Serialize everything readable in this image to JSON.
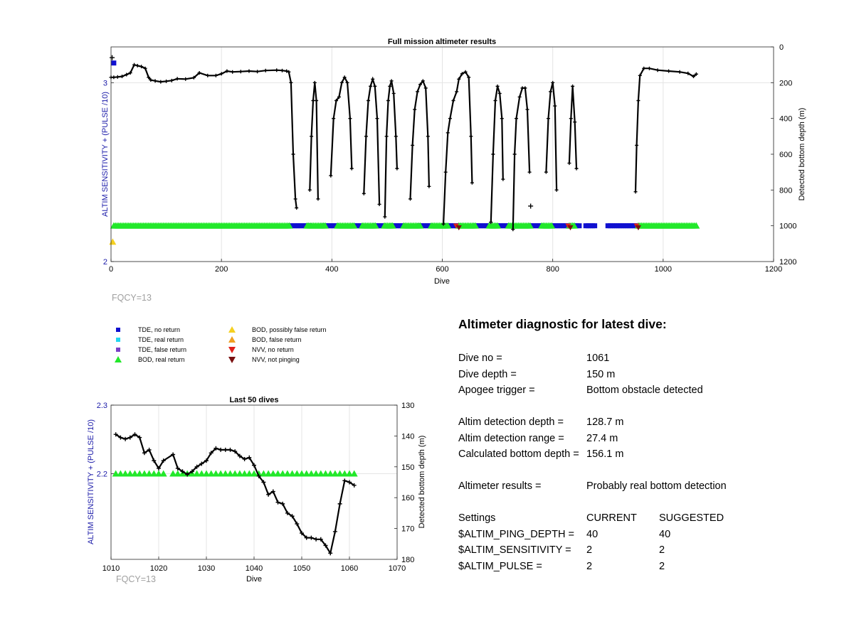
{
  "chart_data": [
    {
      "type": "scatter",
      "title": "Full mission altimeter results",
      "xlabel": "Dive",
      "ylabel": "ALTIM SENSITIVITY + (PULSE /10)",
      "y2label": "Detected bottom depth (m)",
      "xlim": [
        0,
        1200
      ],
      "ylim": [
        2,
        3.2
      ],
      "y2lim": [
        1200,
        0
      ],
      "xticks": [
        "0",
        "200",
        "400",
        "600",
        "800",
        "1000",
        "1200"
      ],
      "yticks": [
        "2",
        "3"
      ],
      "y2ticks": [
        "0",
        "200",
        "400",
        "600",
        "800",
        "1000",
        "1200"
      ],
      "grid": true,
      "annotation": "FQCY=13",
      "sensitivity_series": {
        "green_ranges": [
          [
            5,
            325
          ],
          [
            355,
            390
          ],
          [
            410,
            440
          ],
          [
            455,
            480
          ],
          [
            495,
            510
          ],
          [
            530,
            560
          ],
          [
            580,
            610
          ],
          [
            630,
            660
          ],
          [
            685,
            700
          ],
          [
            720,
            760
          ],
          [
            780,
            800
          ],
          [
            830,
            840
          ],
          [
            955,
            1060
          ]
        ],
        "blue_ranges": [
          [
            325,
            340
          ],
          [
            340,
            360
          ],
          [
            385,
            410
          ],
          [
            440,
            455
          ],
          [
            478,
            495
          ],
          [
            508,
            530
          ],
          [
            558,
            580
          ],
          [
            606,
            632
          ],
          [
            660,
            685
          ],
          [
            700,
            722
          ],
          [
            760,
            782
          ],
          [
            800,
            830
          ],
          [
            840,
            850
          ],
          [
            860,
            876
          ],
          [
            900,
            955
          ]
        ],
        "early_points": [
          {
            "x": 5,
            "y": 3.11,
            "m": "tde_none"
          },
          {
            "x": 3,
            "y": 2.11,
            "m": "bod_possibly_false"
          }
        ],
        "nvv_points": [
          {
            "x": 625,
            "y": 2.2,
            "m": "nvv_none"
          },
          {
            "x": 630,
            "y": 2.19,
            "m": "nvv_not"
          },
          {
            "x": 828,
            "y": 2.2,
            "m": "nvv_none"
          },
          {
            "x": 832,
            "y": 2.19,
            "m": "nvv_not"
          },
          {
            "x": 952,
            "y": 2.2,
            "m": "nvv_none"
          },
          {
            "x": 955,
            "y": 2.19,
            "m": "nvv_not"
          }
        ],
        "sensitivity_level": 2.2
      },
      "bottom_depth": {
        "segments": [
          [
            [
              0,
              170
            ],
            [
              5,
              170
            ],
            [
              12,
              168
            ],
            [
              20,
              165
            ],
            [
              28,
              155
            ],
            [
              35,
              145
            ],
            [
              42,
              100
            ],
            [
              48,
              105
            ],
            [
              55,
              110
            ],
            [
              62,
              120
            ],
            [
              68,
              170
            ],
            [
              72,
              185
            ],
            [
              80,
              190
            ],
            [
              90,
              195
            ],
            [
              100,
              192
            ],
            [
              110,
              188
            ],
            [
              120,
              178
            ],
            [
              135,
              180
            ],
            [
              150,
              172
            ],
            [
              160,
              145
            ],
            [
              175,
              160
            ],
            [
              190,
              160
            ],
            [
              200,
              150
            ],
            [
              210,
              135
            ],
            [
              220,
              140
            ],
            [
              235,
              138
            ],
            [
              250,
              135
            ],
            [
              265,
              138
            ],
            [
              280,
              132
            ],
            [
              300,
              130
            ],
            [
              310,
              132
            ],
            [
              318,
              135
            ],
            [
              322,
              140
            ],
            [
              326,
              200
            ],
            [
              330,
              600
            ],
            [
              334,
              850
            ],
            [
              336,
              900
            ]
          ],
          [
            [
              360,
              800
            ],
            [
              363,
              500
            ],
            [
              366,
              300
            ],
            [
              369,
              200
            ],
            [
              372,
              300
            ],
            [
              375,
              850
            ]
          ],
          [
            [
              398,
              720
            ],
            [
              403,
              400
            ],
            [
              408,
              300
            ],
            [
              413,
              280
            ],
            [
              418,
              200
            ],
            [
              423,
              170
            ],
            [
              428,
              200
            ],
            [
              433,
              400
            ],
            [
              436,
              680
            ]
          ],
          [
            [
              458,
              820
            ],
            [
              462,
              500
            ],
            [
              466,
              300
            ],
            [
              470,
              220
            ],
            [
              474,
              180
            ],
            [
              478,
              220
            ],
            [
              482,
              400
            ],
            [
              486,
              880
            ]
          ],
          [
            [
              496,
              950
            ],
            [
              499,
              500
            ],
            [
              502,
              300
            ],
            [
              505,
              220
            ],
            [
              508,
              190
            ],
            [
              512,
              260
            ],
            [
              516,
              500
            ],
            [
              518,
              680
            ]
          ],
          [
            [
              542,
              850
            ],
            [
              546,
              550
            ],
            [
              550,
              350
            ],
            [
              555,
              250
            ],
            [
              560,
              210
            ],
            [
              565,
              190
            ],
            [
              570,
              230
            ],
            [
              574,
              500
            ],
            [
              576,
              780
            ]
          ],
          [
            [
              602,
              990
            ],
            [
              606,
              700
            ],
            [
              610,
              480
            ],
            [
              614,
              400
            ],
            [
              620,
              300
            ],
            [
              626,
              250
            ],
            [
              630,
              180
            ],
            [
              636,
              150
            ],
            [
              642,
              140
            ],
            [
              648,
              170
            ],
            [
              652,
              500
            ],
            [
              654,
              760
            ]
          ],
          [
            [
              688,
              980
            ],
            [
              692,
              600
            ],
            [
              696,
              300
            ],
            [
              700,
              220
            ],
            [
              704,
              260
            ],
            [
              708,
              400
            ],
            [
              710,
              740
            ]
          ],
          [
            [
              728,
              1020
            ],
            [
              731,
              600
            ],
            [
              734,
              400
            ],
            [
              740,
              280
            ],
            [
              745,
              230
            ],
            [
              750,
              230
            ],
            [
              754,
              350
            ],
            [
              758,
              700
            ]
          ],
          [
            [
              788,
              700
            ],
            [
              792,
              400
            ],
            [
              796,
              250
            ],
            [
              800,
              200
            ],
            [
              804,
              330
            ],
            [
              807,
              800
            ]
          ],
          [
            [
              830,
              650
            ],
            [
              833,
              400
            ],
            [
              836,
              220
            ],
            [
              840,
              420
            ],
            [
              843,
              680
            ]
          ],
          [
            [
              950,
              810
            ],
            [
              952,
              550
            ],
            [
              955,
              300
            ],
            [
              958,
              160
            ],
            [
              965,
              120
            ],
            [
              975,
              120
            ],
            [
              990,
              130
            ],
            [
              1010,
              135
            ],
            [
              1030,
              140
            ],
            [
              1045,
              148
            ],
            [
              1055,
              165
            ],
            [
              1060,
              152
            ]
          ]
        ],
        "outliers": [
          {
            "x": 2,
            "y": 60
          },
          {
            "x": 760,
            "y": 890
          }
        ]
      }
    },
    {
      "type": "scatter",
      "title": "Last 50 dives",
      "xlabel": "Dive",
      "ylabel": "ALTIM SENSITIVITY + (PULSE /10)",
      "y2label": "Detected bottom depth (m)",
      "xlim": [
        1010,
        1070
      ],
      "ylim": [
        2.075,
        2.3
      ],
      "y2lim": [
        180,
        130
      ],
      "xticks": [
        "1010",
        "1020",
        "1030",
        "1040",
        "1050",
        "1060",
        "1070"
      ],
      "yticks": [
        "2.2",
        "2.3"
      ],
      "y2ticks": [
        "130",
        "140",
        "150",
        "160",
        "170",
        "180"
      ],
      "grid": true,
      "annotation": "FQCY=13",
      "sensitivity_x": [
        1011,
        1012,
        1013,
        1014,
        1015,
        1016,
        1017,
        1018,
        1019,
        1020,
        1021,
        1023,
        1024,
        1025,
        1026,
        1027,
        1028,
        1029,
        1030,
        1031,
        1032,
        1033,
        1034,
        1035,
        1036,
        1037,
        1038,
        1039,
        1040,
        1041,
        1042,
        1043,
        1044,
        1045,
        1046,
        1047,
        1048,
        1049,
        1050,
        1051,
        1052,
        1053,
        1054,
        1055,
        1056,
        1057,
        1058,
        1059,
        1060,
        1061
      ],
      "sensitivity_level": 2.2,
      "bottom_depth": [
        [
          1011,
          139.5
        ],
        [
          1012,
          140.5
        ],
        [
          1013,
          141
        ],
        [
          1014,
          140.5
        ],
        [
          1015,
          139.5
        ],
        [
          1016,
          140.5
        ],
        [
          1017,
          145.5
        ],
        [
          1018,
          144.5
        ],
        [
          1019,
          148
        ],
        [
          1020,
          150.5
        ],
        [
          1021,
          148
        ],
        [
          1023,
          146
        ],
        [
          1024,
          150.5
        ],
        [
          1025,
          151.5
        ],
        [
          1026,
          152.5
        ],
        [
          1027,
          151.5
        ],
        [
          1028,
          150
        ],
        [
          1029,
          149
        ],
        [
          1030,
          148
        ],
        [
          1031,
          145.5
        ],
        [
          1032,
          144
        ],
        [
          1033,
          144.5
        ],
        [
          1034,
          144.5
        ],
        [
          1035,
          144.5
        ],
        [
          1036,
          145
        ],
        [
          1037,
          146.5
        ],
        [
          1038,
          147.5
        ],
        [
          1039,
          147
        ],
        [
          1040,
          149.5
        ],
        [
          1041,
          153
        ],
        [
          1042,
          155
        ],
        [
          1043,
          159
        ],
        [
          1044,
          158
        ],
        [
          1045,
          161.5
        ],
        [
          1046,
          162
        ],
        [
          1047,
          165
        ],
        [
          1048,
          166
        ],
        [
          1049,
          168.5
        ],
        [
          1050,
          171.5
        ],
        [
          1051,
          173
        ],
        [
          1052,
          173
        ],
        [
          1053,
          173.5
        ],
        [
          1054,
          173.5
        ],
        [
          1055,
          175.5
        ],
        [
          1056,
          178
        ],
        [
          1057,
          171
        ],
        [
          1058,
          162
        ],
        [
          1059,
          154.5
        ],
        [
          1060,
          155
        ],
        [
          1061,
          156
        ]
      ]
    }
  ],
  "legend": {
    "items": [
      {
        "label": "TDE, no return",
        "marker": "square",
        "color": "#1010d0"
      },
      {
        "label": "TDE, real return",
        "marker": "square",
        "color": "#22d6f0"
      },
      {
        "label": "TDE, false return",
        "marker": "square",
        "color": "#7a3fc8"
      },
      {
        "label": "BOD, real return",
        "marker": "triangle-up",
        "color": "#22e82a"
      },
      {
        "label": "BOD, possibly false return",
        "marker": "triangle-up",
        "color": "#f5d020"
      },
      {
        "label": "BOD, false return",
        "marker": "triangle-up",
        "color": "#f0a020"
      },
      {
        "label": "NVV, no return",
        "marker": "triangle-down",
        "color": "#e0201a"
      },
      {
        "label": "NVV, not pinging",
        "marker": "triangle-down",
        "color": "#7a1010"
      }
    ]
  },
  "diagnostic": {
    "title": "Altimeter diagnostic for latest dive:",
    "dive_no_label": "Dive no =",
    "dive_no": "1061",
    "dive_depth_label": "Dive depth =",
    "dive_depth": "150 m",
    "apogee_label": "Apogee trigger =",
    "apogee": "Bottom obstacle detected",
    "altim_depth_label": "Altim detection depth =",
    "altim_depth": "128.7 m",
    "altim_range_label": "Altim detection range =",
    "altim_range": "27.4 m",
    "calc_depth_label": "Calculated bottom depth =",
    "calc_depth": "156.1 m",
    "results_label": "Altimeter results =",
    "results": "Probably real bottom detection",
    "settings_label": "Settings",
    "current_label": "CURRENT",
    "suggested_label": "SUGGESTED",
    "ping_depth_label": "$ALTIM_PING_DEPTH =",
    "ping_depth_current": "40",
    "ping_depth_suggested": "40",
    "sensitivity_label": "$ALTIM_SENSITIVITY =",
    "sensitivity_current": "2",
    "sensitivity_suggested": "2",
    "pulse_label": "$ALTIM_PULSE =",
    "pulse_current": "2",
    "pulse_suggested": "2"
  },
  "colors": {
    "axis_left": "#1a1aa8",
    "depth_line": "#000000",
    "grid": "#e4e4e4",
    "fqcy": "#a0a0a0"
  }
}
